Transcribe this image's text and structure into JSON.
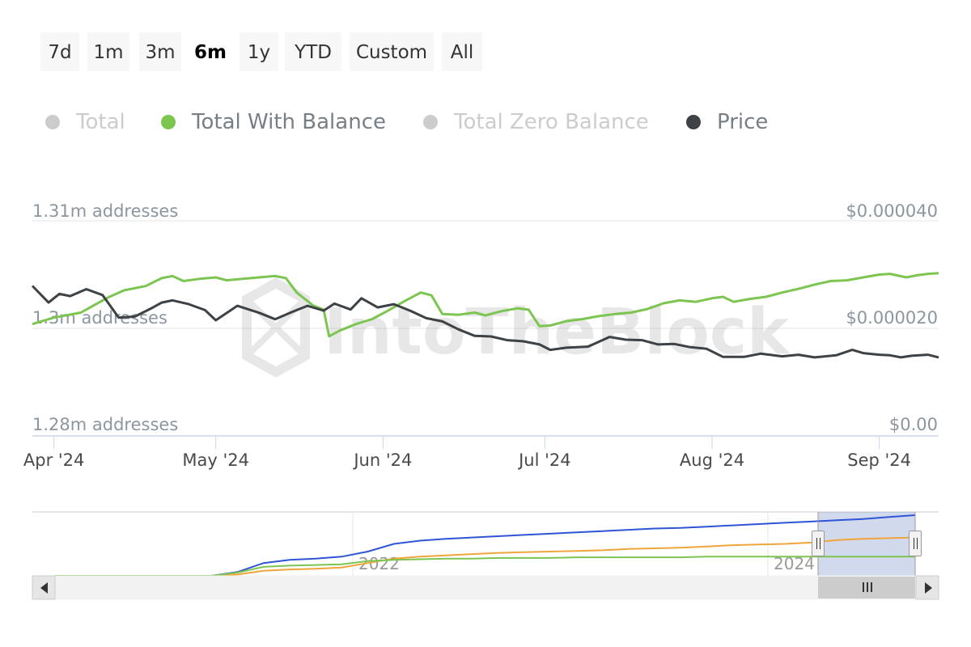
{
  "range_selector": {
    "buttons": [
      "7d",
      "1m",
      "3m",
      "6m",
      "1y",
      "YTD",
      "Custom",
      "All"
    ],
    "active": "6m"
  },
  "legend": [
    {
      "label": "Total",
      "color": "#cccccc",
      "visible": false
    },
    {
      "label": "Total With Balance",
      "color": "#7cc551",
      "visible": true
    },
    {
      "label": "Total Zero Balance",
      "color": "#cccccc",
      "visible": false
    },
    {
      "label": "Price",
      "color": "#3d4246",
      "visible": true
    }
  ],
  "watermark": "IntoTheBlock",
  "chart_data": {
    "type": "line",
    "x_tick_labels": [
      "Apr '24",
      "May '24",
      "Jun '24",
      "Jul '24",
      "Aug '24",
      "Sep '24"
    ],
    "y_left_tick_labels": [
      "1.28m addresses",
      "1.3m addresses",
      "1.31m addresses"
    ],
    "y_right_tick_labels": [
      "$0.00",
      "$0.000020",
      "$0.000040"
    ],
    "y_left_range": [
      1280000,
      1310000
    ],
    "y_right_range": [
      0,
      4e-05
    ],
    "x_range": [
      "2024-03-28",
      "2024-09-12"
    ],
    "grid": true,
    "legend_position": "top",
    "series": [
      {
        "name": "Total With Balance",
        "axis": "left",
        "color": "#7cc551",
        "points": [
          [
            "2024-03-28",
            1295600
          ],
          [
            "2024-04-01",
            1296500
          ],
          [
            "2024-04-06",
            1297200
          ],
          [
            "2024-04-11",
            1299300
          ],
          [
            "2024-04-14",
            1300300
          ],
          [
            "2024-04-18",
            1300900
          ],
          [
            "2024-04-21",
            1302000
          ],
          [
            "2024-04-23",
            1302300
          ],
          [
            "2024-04-25",
            1301600
          ],
          [
            "2024-04-28",
            1301900
          ],
          [
            "2024-05-01",
            1302100
          ],
          [
            "2024-05-03",
            1301700
          ],
          [
            "2024-05-06",
            1301900
          ],
          [
            "2024-05-09",
            1302100
          ],
          [
            "2024-05-12",
            1302300
          ],
          [
            "2024-05-14",
            1302000
          ],
          [
            "2024-05-16",
            1300000
          ],
          [
            "2024-05-19",
            1298200
          ],
          [
            "2024-05-21",
            1297600
          ],
          [
            "2024-05-22",
            1293900
          ],
          [
            "2024-05-24",
            1294700
          ],
          [
            "2024-05-27",
            1295600
          ],
          [
            "2024-05-30",
            1296300
          ],
          [
            "2024-06-02",
            1297500
          ],
          [
            "2024-06-05",
            1298800
          ],
          [
            "2024-06-08",
            1300000
          ],
          [
            "2024-06-10",
            1299600
          ],
          [
            "2024-06-12",
            1297000
          ],
          [
            "2024-06-15",
            1296900
          ],
          [
            "2024-06-18",
            1297200
          ],
          [
            "2024-06-20",
            1296800
          ],
          [
            "2024-06-23",
            1297400
          ],
          [
            "2024-06-26",
            1297800
          ],
          [
            "2024-06-28",
            1297600
          ],
          [
            "2024-06-30",
            1295300
          ],
          [
            "2024-07-02",
            1295400
          ],
          [
            "2024-07-05",
            1296000
          ],
          [
            "2024-07-08",
            1296300
          ],
          [
            "2024-07-11",
            1296700
          ],
          [
            "2024-07-14",
            1297000
          ],
          [
            "2024-07-17",
            1297200
          ],
          [
            "2024-07-20",
            1297700
          ],
          [
            "2024-07-23",
            1298500
          ],
          [
            "2024-07-26",
            1298900
          ],
          [
            "2024-07-29",
            1298700
          ],
          [
            "2024-08-01",
            1299200
          ],
          [
            "2024-08-03",
            1299400
          ],
          [
            "2024-08-05",
            1298700
          ],
          [
            "2024-08-08",
            1299100
          ],
          [
            "2024-08-11",
            1299400
          ],
          [
            "2024-08-14",
            1300000
          ],
          [
            "2024-08-17",
            1300500
          ],
          [
            "2024-08-20",
            1301100
          ],
          [
            "2024-08-23",
            1301600
          ],
          [
            "2024-08-26",
            1301700
          ],
          [
            "2024-08-29",
            1302100
          ],
          [
            "2024-09-01",
            1302500
          ],
          [
            "2024-09-03",
            1302600
          ],
          [
            "2024-09-06",
            1302100
          ],
          [
            "2024-09-08",
            1302400
          ],
          [
            "2024-09-10",
            1302600
          ],
          [
            "2024-09-12",
            1302700
          ]
        ]
      },
      {
        "name": "Price",
        "axis": "right",
        "color": "#3d4246",
        "points": [
          [
            "2024-03-28",
            2.79e-05
          ],
          [
            "2024-03-31",
            2.48e-05
          ],
          [
            "2024-04-02",
            2.64e-05
          ],
          [
            "2024-04-04",
            2.6e-05
          ],
          [
            "2024-04-07",
            2.73e-05
          ],
          [
            "2024-04-10",
            2.62e-05
          ],
          [
            "2024-04-13",
            2.2e-05
          ],
          [
            "2024-04-16",
            2.22e-05
          ],
          [
            "2024-04-19",
            2.37e-05
          ],
          [
            "2024-04-21",
            2.48e-05
          ],
          [
            "2024-04-23",
            2.52e-05
          ],
          [
            "2024-04-26",
            2.45e-05
          ],
          [
            "2024-04-29",
            2.34e-05
          ],
          [
            "2024-05-01",
            2.15e-05
          ],
          [
            "2024-05-05",
            2.42e-05
          ],
          [
            "2024-05-09",
            2.29e-05
          ],
          [
            "2024-05-12",
            2.17e-05
          ],
          [
            "2024-05-15",
            2.3e-05
          ],
          [
            "2024-05-18",
            2.42e-05
          ],
          [
            "2024-05-21",
            2.33e-05
          ],
          [
            "2024-05-23",
            2.46e-05
          ],
          [
            "2024-05-26",
            2.35e-05
          ],
          [
            "2024-05-28",
            2.56e-05
          ],
          [
            "2024-05-31",
            2.39e-05
          ],
          [
            "2024-06-03",
            2.45e-05
          ],
          [
            "2024-06-06",
            2.33e-05
          ],
          [
            "2024-06-09",
            2.19e-05
          ],
          [
            "2024-06-12",
            2.13e-05
          ],
          [
            "2024-06-15",
            1.98e-05
          ],
          [
            "2024-06-18",
            1.86e-05
          ],
          [
            "2024-06-21",
            1.85e-05
          ],
          [
            "2024-06-24",
            1.78e-05
          ],
          [
            "2024-06-27",
            1.76e-05
          ],
          [
            "2024-06-30",
            1.7e-05
          ],
          [
            "2024-07-02",
            1.6e-05
          ],
          [
            "2024-07-05",
            1.64e-05
          ],
          [
            "2024-07-09",
            1.66e-05
          ],
          [
            "2024-07-13",
            1.84e-05
          ],
          [
            "2024-07-16",
            1.79e-05
          ],
          [
            "2024-07-19",
            1.78e-05
          ],
          [
            "2024-07-22",
            1.7e-05
          ],
          [
            "2024-07-25",
            1.71e-05
          ],
          [
            "2024-07-28",
            1.65e-05
          ],
          [
            "2024-07-31",
            1.62e-05
          ],
          [
            "2024-08-03",
            1.47e-05
          ],
          [
            "2024-08-07",
            1.47e-05
          ],
          [
            "2024-08-10",
            1.53e-05
          ],
          [
            "2024-08-14",
            1.48e-05
          ],
          [
            "2024-08-17",
            1.51e-05
          ],
          [
            "2024-08-20",
            1.46e-05
          ],
          [
            "2024-08-24",
            1.5e-05
          ],
          [
            "2024-08-27",
            1.6e-05
          ],
          [
            "2024-08-29",
            1.54e-05
          ],
          [
            "2024-09-01",
            1.51e-05
          ],
          [
            "2024-09-03",
            1.5e-05
          ],
          [
            "2024-09-05",
            1.46e-05
          ],
          [
            "2024-09-07",
            1.49e-05
          ],
          [
            "2024-09-10",
            1.51e-05
          ],
          [
            "2024-09-12",
            1.46e-05
          ]
        ]
      }
    ]
  },
  "navigator": {
    "x_tick_labels": [
      "2022",
      "2024"
    ],
    "series": [
      {
        "color": "#2f54d6",
        "values": [
          0,
          0,
          0,
          0,
          0,
          0,
          0,
          0.06,
          0.2,
          0.25,
          0.27,
          0.3,
          0.38,
          0.5,
          0.55,
          0.58,
          0.6,
          0.62,
          0.64,
          0.66,
          0.68,
          0.7,
          0.72,
          0.74,
          0.75,
          0.77,
          0.79,
          0.81,
          0.83,
          0.85,
          0.87,
          0.89,
          0.92,
          0.95
        ]
      },
      {
        "color": "#f0a43a",
        "values": [
          0,
          0,
          0,
          0,
          0,
          0,
          0,
          0.02,
          0.08,
          0.1,
          0.11,
          0.13,
          0.2,
          0.27,
          0.3,
          0.32,
          0.34,
          0.36,
          0.37,
          0.38,
          0.39,
          0.4,
          0.42,
          0.43,
          0.44,
          0.46,
          0.48,
          0.49,
          0.5,
          0.52,
          0.56,
          0.58,
          0.59,
          0.6
        ]
      },
      {
        "color": "#7cc551",
        "values": [
          0,
          0,
          0,
          0,
          0,
          0,
          0,
          0.05,
          0.14,
          0.16,
          0.17,
          0.18,
          0.23,
          0.25,
          0.26,
          0.27,
          0.27,
          0.28,
          0.28,
          0.28,
          0.29,
          0.29,
          0.29,
          0.29,
          0.29,
          0.3,
          0.3,
          0.3,
          0.3,
          0.3,
          0.3,
          0.3,
          0.3,
          0.3
        ]
      }
    ],
    "selected_range": [
      0.93,
      1.0
    ]
  }
}
